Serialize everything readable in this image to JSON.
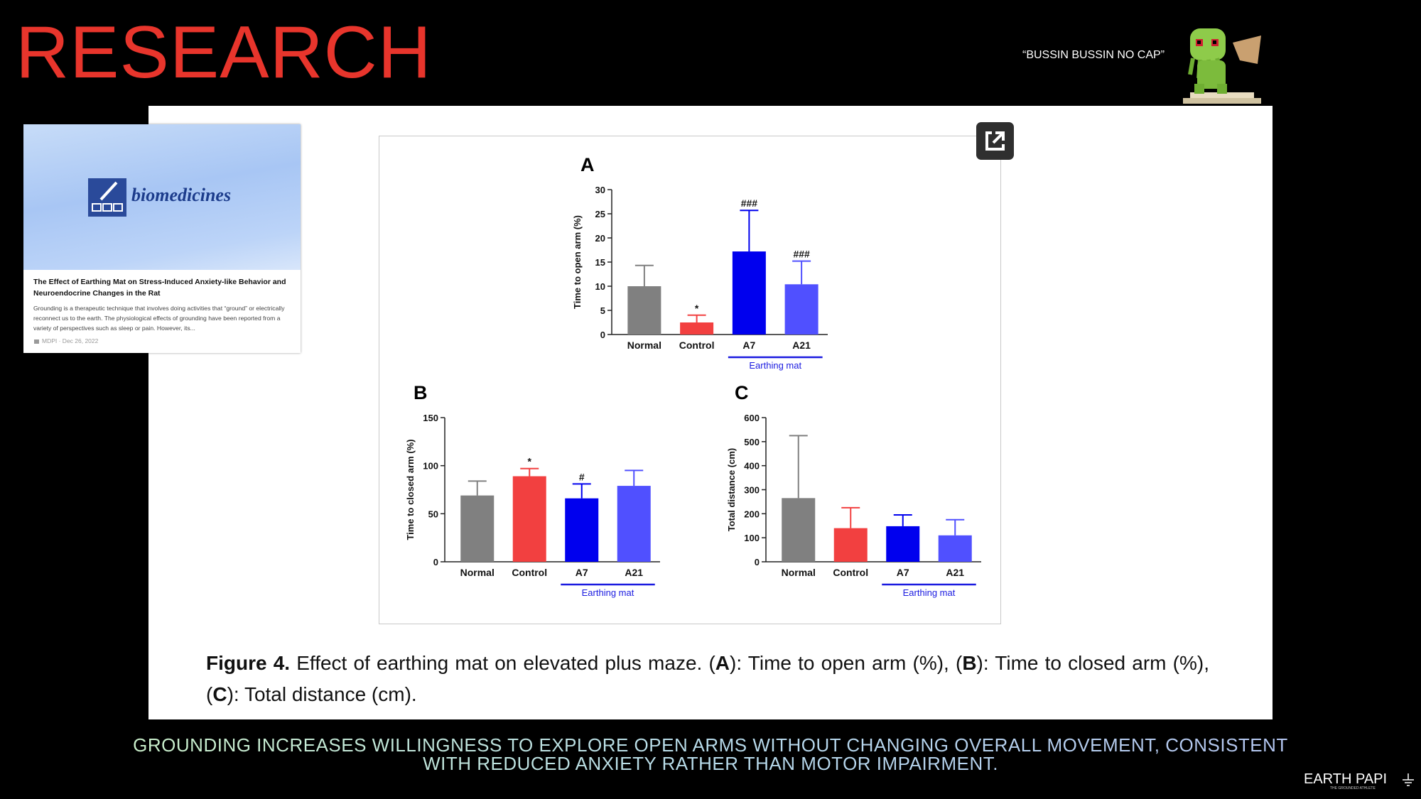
{
  "header": {
    "title": "RESEARCH",
    "quote": "“BUSSIN BUSSIN NO CAP”"
  },
  "card": {
    "journal": "biomedicines",
    "title": "The Effect of Earthing Mat on Stress-Induced Anxiety-like Behavior and Neuroendocrine Changes in the Rat",
    "description": "Grounding is a therapeutic technique that involves doing activities that “ground” or electrically reconnect us to the earth. The physiological effects of grounding have been reported from a variety of perspectives such as sleep or pain. However, its...",
    "source": "MDPI · Dec 26, 2022"
  },
  "chart_data": [
    {
      "type": "bar",
      "panel": "A",
      "ylabel": "Time to open arm (%)",
      "categories": [
        "Normal",
        "Control",
        "A7",
        "A21"
      ],
      "values": [
        10,
        2.5,
        17.2,
        10.4
      ],
      "errors": [
        4.3,
        1.5,
        8.5,
        4.8
      ],
      "colors": [
        "#808080",
        "#f24040",
        "#0000ee",
        "#5050ff"
      ],
      "annotations": [
        null,
        "*",
        "###",
        "###"
      ],
      "group_label": "Earthing mat",
      "group_color": "#1a1ae0",
      "ylim": [
        0,
        30
      ],
      "yticks": [
        0,
        5,
        10,
        15,
        20,
        25,
        30
      ]
    },
    {
      "type": "bar",
      "panel": "B",
      "ylabel": "Time to closed arm (%)",
      "categories": [
        "Normal",
        "Control",
        "A7",
        "A21"
      ],
      "values": [
        69,
        89,
        66,
        79
      ],
      "errors": [
        15,
        8,
        15,
        16
      ],
      "colors": [
        "#808080",
        "#f24040",
        "#0000ee",
        "#5050ff"
      ],
      "annotations": [
        null,
        "*",
        "#",
        null
      ],
      "group_label": "Earthing mat",
      "group_color": "#1a1ae0",
      "ylim": [
        0,
        150
      ],
      "yticks": [
        0,
        50,
        100,
        150
      ]
    },
    {
      "type": "bar",
      "panel": "C",
      "ylabel": "Total distance (cm)",
      "categories": [
        "Normal",
        "Control",
        "A7",
        "A21"
      ],
      "values": [
        265,
        140,
        148,
        110
      ],
      "errors": [
        260,
        85,
        47,
        65
      ],
      "colors": [
        "#808080",
        "#f24040",
        "#0000ee",
        "#5050ff"
      ],
      "annotations": [
        null,
        null,
        null,
        null
      ],
      "group_label": "Earthing mat",
      "group_color": "#1a1ae0",
      "ylim": [
        0,
        600
      ],
      "yticks": [
        0,
        100,
        200,
        300,
        400,
        500,
        600
      ]
    }
  ],
  "caption": [
    {
      "text": "Figure 4.",
      "bold": true
    },
    {
      "text": " Effect of earthing mat on elevated plus maze. (",
      "bold": false
    },
    {
      "text": "A",
      "bold": true
    },
    {
      "text": "): Time to open arm (%), (",
      "bold": false
    },
    {
      "text": "B",
      "bold": true
    },
    {
      "text": "): Time to closed arm (%), (",
      "bold": false
    },
    {
      "text": "C",
      "bold": true
    },
    {
      "text": "): Total distance (cm).",
      "bold": false
    }
  ],
  "footer": {
    "lines": [
      "GROUNDING INCREASES WILLINGNESS TO EXPLORE OPEN ARMS WITHOUT CHANGING OVERALL MOVEMENT, CONSISTENT",
      "WITH REDUCED ANXIETY RATHER THAN MOTOR IMPAIRMENT."
    ],
    "brand": "EARTH PAPI",
    "tagline": "THE GROUNDED ATHLETE"
  }
}
